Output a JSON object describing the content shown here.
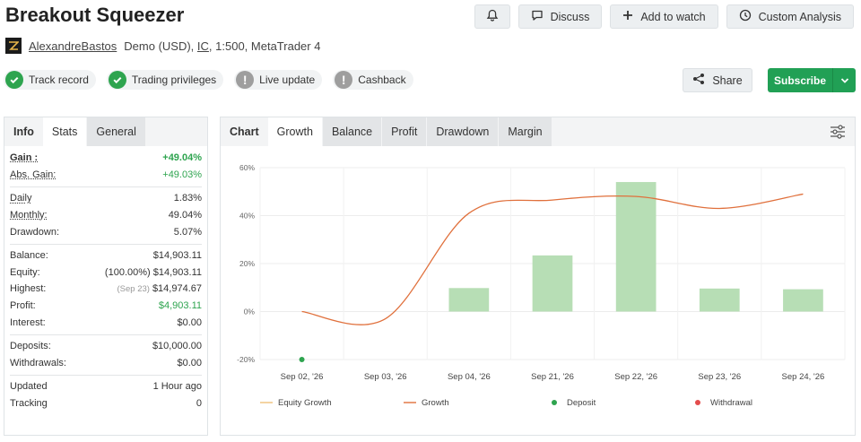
{
  "header": {
    "title": "Breakout Squeezer",
    "actions": {
      "discuss": "Discuss",
      "add_to_watch": "Add to watch",
      "custom_analysis": "Custom Analysis"
    }
  },
  "meta": {
    "author": "AlexandreBastos",
    "account": "Demo (USD),",
    "broker": "IC",
    "leverage": ", 1:500, MetaTrader 4"
  },
  "badges": [
    {
      "label": "Track record",
      "status": "ok"
    },
    {
      "label": "Trading privileges",
      "status": "ok"
    },
    {
      "label": "Live update",
      "status": "warn"
    },
    {
      "label": "Cashback",
      "status": "warn"
    }
  ],
  "share_label": "Share",
  "subscribe_label": "Subscribe",
  "stats_panel": {
    "tabs": [
      "Info",
      "Stats",
      "General"
    ],
    "rows": {
      "gain": {
        "k": "Gain :",
        "v": "+49.04%"
      },
      "abs_gain": {
        "k": "Abs. Gain:",
        "v": "+49.03%"
      },
      "daily": {
        "k": "Daily",
        "v": "1.83%"
      },
      "monthly": {
        "k": "Monthly:",
        "v": "49.04%"
      },
      "drawdown": {
        "k": "Drawdown:",
        "v": "5.07%"
      },
      "balance": {
        "k": "Balance:",
        "v": "$14,903.11"
      },
      "equity": {
        "k": "Equity:",
        "pre": "(100.00%)",
        "v": "$14,903.11"
      },
      "highest": {
        "k": "Highest:",
        "pre": "(Sep 23)",
        "v": "$14,974.67"
      },
      "profit": {
        "k": "Profit:",
        "v": "$4,903.11"
      },
      "interest": {
        "k": "Interest:",
        "v": "$0.00"
      },
      "deposits": {
        "k": "Deposits:",
        "v": "$10,000.00"
      },
      "withdrawals": {
        "k": "Withdrawals:",
        "v": "$0.00"
      },
      "updated": {
        "k": "Updated",
        "v": "1 Hour ago"
      },
      "tracking": {
        "k": "Tracking",
        "v": "0"
      }
    }
  },
  "chart_panel": {
    "tabs": [
      "Chart",
      "Growth",
      "Balance",
      "Profit",
      "Drawdown",
      "Margin"
    ]
  },
  "colors": {
    "bar": "#b7deb5",
    "growth_line": "#e0703c",
    "equity_line": "#f0c27a",
    "deposit": "#2ea44f",
    "withdrawal": "#e34c4c",
    "accent_green": "#21a055"
  },
  "chart_data": {
    "type": "bar",
    "categories": [
      "Sep 02, '26",
      "Sep 03, '26",
      "Sep 04, '26",
      "Sep 21, '26",
      "Sep 22, '26",
      "Sep 23, '26",
      "Sep 24, '26"
    ],
    "series": [
      {
        "name": "Growth",
        "type": "bar",
        "values": [
          0,
          0,
          9.8,
          23.4,
          54,
          9.6,
          9.3
        ]
      },
      {
        "name": "Growth",
        "type": "line",
        "values": [
          0,
          -3,
          41,
          46.5,
          48,
          43,
          49
        ]
      },
      {
        "name": "Deposit",
        "type": "marker",
        "values": [
          -20,
          null,
          null,
          null,
          null,
          null,
          null
        ]
      }
    ],
    "yticks": [
      "60%",
      "40%",
      "20%",
      "0%",
      "-20%"
    ],
    "ylim": [
      -20,
      60
    ],
    "grid": true,
    "legend": [
      "Equity Growth",
      "Growth",
      "Deposit",
      "Withdrawal"
    ],
    "legend_position": "bottom"
  }
}
